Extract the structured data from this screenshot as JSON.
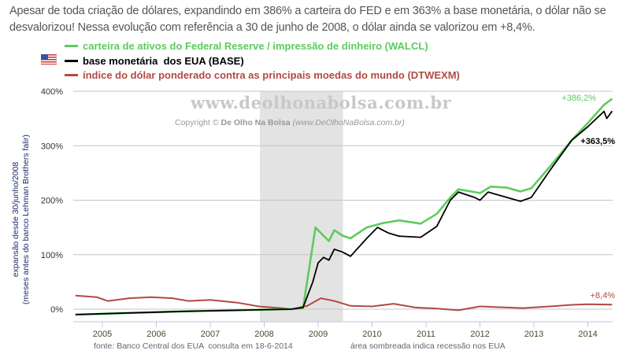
{
  "title": "Apesar de toda criação de dólares, expandindo em 386% a carteira do FED e em 363% a base monetária, o dólar não se desvalorizou! Nessa evolução com referência a 30 de junho de 2008, o dólar ainda se valorizou em +8,4%.",
  "watermark": "www.deolhonabolsa.com.br",
  "copyright_prefix": "Copyright © ",
  "copyright_name": "De Olho Na Bolsa",
  "copyright_url": "(www.DeOlhoNaBolsa.com.br)",
  "footer_source": "fonte: Banco Central dos EUA  consulta em 18-6-2014",
  "footer_shade": "área sombreada indica recessão nos EUA",
  "chart_data": {
    "type": "line",
    "title": "",
    "ylabel": "expansão desde 30/junho/2008",
    "ylabel2": "(meses antes do banco Lehman Brothers falir)",
    "xlim": [
      2004.45,
      2014.5
    ],
    "ylim": [
      -22,
      400
    ],
    "yticks": [
      {
        "v": 0,
        "label": "0%"
      },
      {
        "v": 100,
        "label": "100%"
      },
      {
        "v": 200,
        "label": "200%"
      },
      {
        "v": 300,
        "label": "300%"
      },
      {
        "v": 400,
        "label": "400%"
      }
    ],
    "xticks": [
      {
        "v": 2005,
        "label": "2005"
      },
      {
        "v": 2006,
        "label": "2006"
      },
      {
        "v": 2007,
        "label": "2007"
      },
      {
        "v": 2008,
        "label": "2008"
      },
      {
        "v": 2009,
        "label": "2009"
      },
      {
        "v": 2010,
        "label": "2010"
      },
      {
        "v": 2011,
        "label": "2011"
      },
      {
        "v": 2012,
        "label": "2012"
      },
      {
        "v": 2013,
        "label": "2013"
      },
      {
        "v": 2014,
        "label": "2014"
      }
    ],
    "recession": [
      2007.92,
      2009.46
    ],
    "grid": true,
    "legend_position": "top",
    "series": [
      {
        "name": "carteira de ativos do Federal Reserve / impressão de dinheiro (WALCL)",
        "color": "#5ccc5c",
        "end_label": "+386,2%",
        "x": [
          2004.5,
          2005.5,
          2006.5,
          2007.5,
          2008.5,
          2008.72,
          2008.95,
          2009.05,
          2009.2,
          2009.3,
          2009.45,
          2009.6,
          2009.9,
          2010.2,
          2010.5,
          2010.9,
          2011.2,
          2011.45,
          2011.6,
          2011.9,
          2012.0,
          2012.2,
          2012.5,
          2012.75,
          2012.95,
          2013.3,
          2013.7,
          2014.0,
          2014.3,
          2014.45
        ],
        "y": [
          -10,
          -7,
          -4,
          -2,
          0,
          2,
          150,
          140,
          125,
          145,
          135,
          130,
          150,
          158,
          163,
          157,
          175,
          205,
          220,
          215,
          213,
          225,
          223,
          216,
          222,
          262,
          310,
          342,
          375,
          386.2
        ]
      },
      {
        "name": "base monetária  dos EUA (BASE)",
        "color": "#000000",
        "end_label": "+363,5%",
        "x": [
          2004.5,
          2005.5,
          2006.5,
          2007.5,
          2008.5,
          2008.72,
          2008.9,
          2009.0,
          2009.1,
          2009.2,
          2009.3,
          2009.45,
          2009.6,
          2009.9,
          2010.1,
          2010.3,
          2010.5,
          2010.9,
          2011.2,
          2011.45,
          2011.6,
          2011.9,
          2012.0,
          2012.15,
          2012.5,
          2012.75,
          2012.95,
          2013.3,
          2013.7,
          2014.0,
          2014.3,
          2014.35,
          2014.45
        ],
        "y": [
          -10,
          -7,
          -4,
          -2,
          0,
          3,
          50,
          85,
          95,
          90,
          110,
          105,
          97,
          130,
          150,
          140,
          134,
          132,
          152,
          200,
          215,
          205,
          200,
          215,
          205,
          198,
          205,
          255,
          310,
          335,
          363,
          350,
          363.5
        ]
      },
      {
        "name": "índice do dólar ponderado contra as principais moedas do mundo (DTWEXM)",
        "color": "#b24a44",
        "end_label": "+8,4%",
        "x": [
          2004.5,
          2004.9,
          2005.1,
          2005.5,
          2005.9,
          2006.3,
          2006.6,
          2007.0,
          2007.5,
          2007.9,
          2008.3,
          2008.5,
          2008.8,
          2009.05,
          2009.3,
          2009.6,
          2010.0,
          2010.4,
          2010.8,
          2011.2,
          2011.6,
          2012.0,
          2012.5,
          2012.8,
          2013.3,
          2013.7,
          2014.0,
          2014.45
        ],
        "y": [
          25,
          22,
          15,
          20,
          22,
          20,
          15,
          17,
          12,
          5,
          2,
          0,
          6,
          20,
          15,
          6,
          5,
          10,
          3,
          1,
          -2,
          5,
          3,
          2,
          5,
          8,
          9,
          8.4
        ]
      }
    ]
  }
}
